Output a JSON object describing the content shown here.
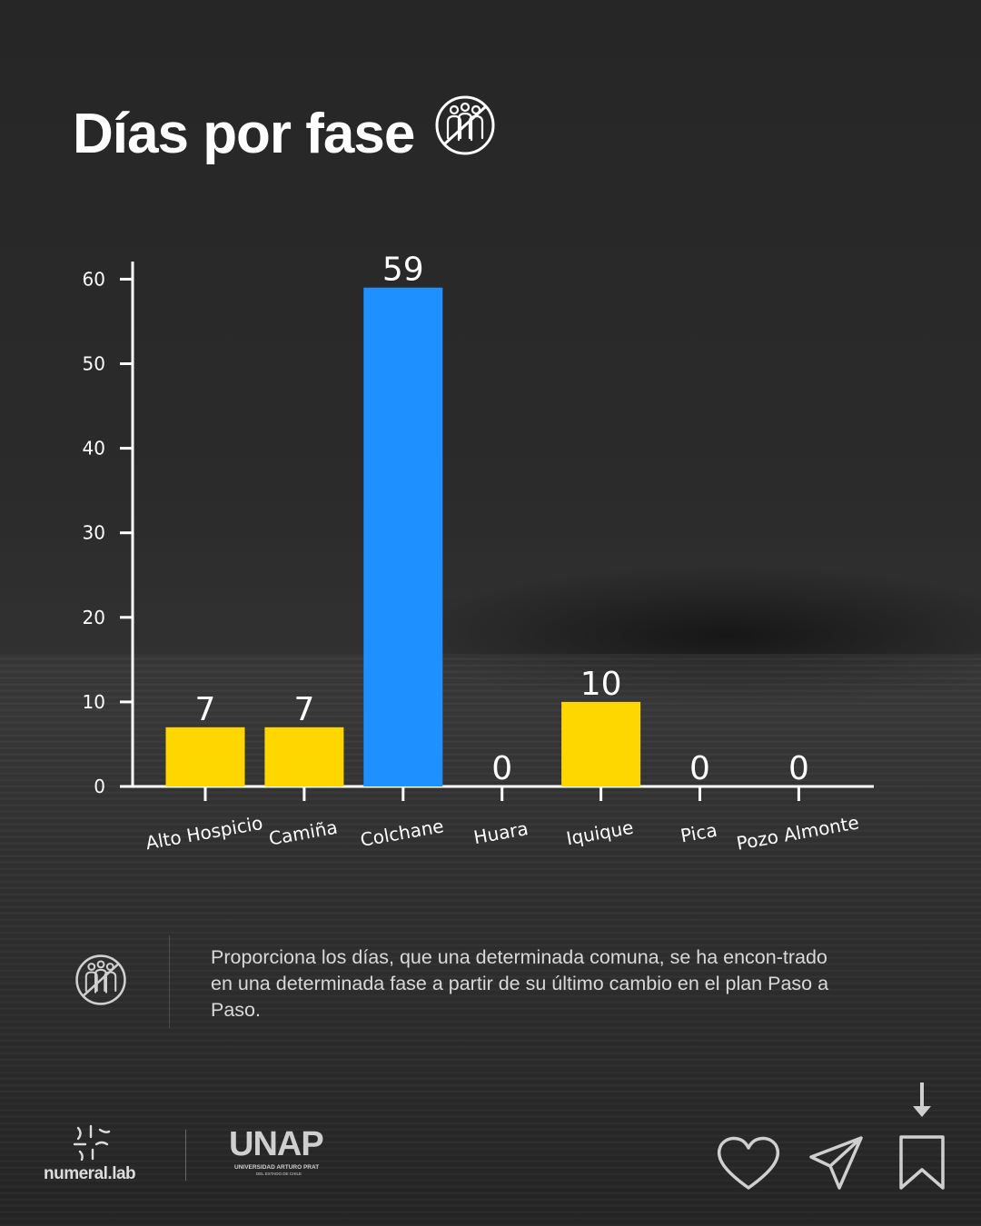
{
  "header": {
    "title": "Días por fase",
    "icon": "group-crossed-out-icon"
  },
  "chart_data": {
    "type": "bar",
    "categories": [
      "Alto Hospicio",
      "Camiña",
      "Colchane",
      "Huara",
      "Iquique",
      "Pica",
      "Pozo Almonte"
    ],
    "values": [
      7,
      7,
      59,
      0,
      10,
      0,
      0
    ],
    "value_labels": [
      "7",
      "7",
      "59",
      "0",
      "10",
      "0",
      "0"
    ],
    "bar_colors": [
      "#FFD700",
      "#FFD700",
      "#1E90FF",
      "#FFD700",
      "#FFD700",
      "#FFD700",
      "#FFD700"
    ],
    "title": "",
    "xlabel": "",
    "ylabel": "",
    "ylim": [
      0,
      62
    ],
    "yticks": [
      0,
      10,
      20,
      30,
      40,
      50,
      60
    ],
    "grid": false,
    "legend": "none",
    "axis_color": "#ffffff"
  },
  "description": {
    "text": "Proporciona los días, que una determinada comuna, se ha encon-trado en una determinada fase a partir de su último cambio en el plan Paso a Paso.",
    "icon": "group-crossed-out-icon"
  },
  "footer": {
    "numeral_logo": "numeral.lab",
    "unap_logo": "UNAP",
    "unap_subtitle": "UNIVERSIDAD ARTURO PRAT",
    "unap_subtitle2": "DEL ESTADO DE CHILE",
    "actions": [
      "heart-icon",
      "send-icon",
      "bookmark-icon",
      "arrow-down-icon"
    ]
  }
}
